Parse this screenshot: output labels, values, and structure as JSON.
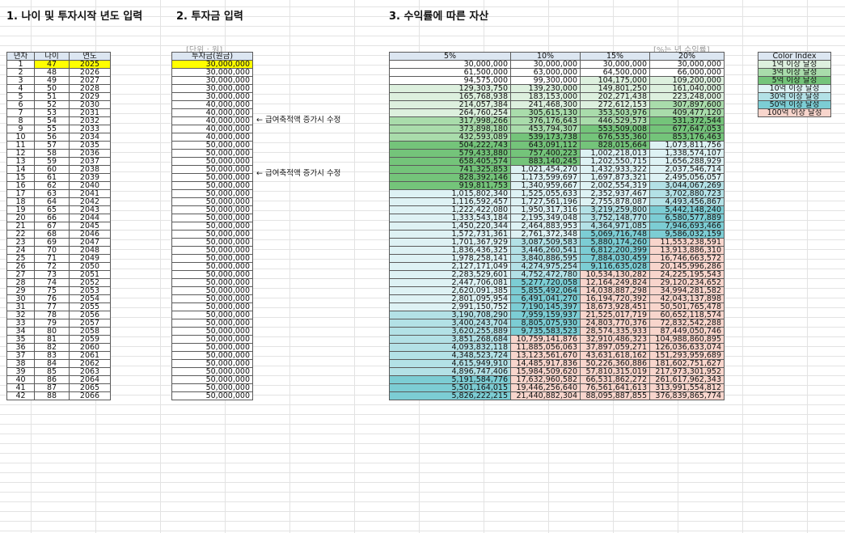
{
  "sections": {
    "s1": "1. 나이 및 투자시작 년도 입력",
    "s2": "2. 투자금 입력",
    "s3": "3. 수익률에 따른 자산"
  },
  "units": {
    "invest": "[단위 : 원]",
    "rate": "[%는 년 수익률]"
  },
  "table1": {
    "headers": [
      "년차",
      "나이",
      "연도"
    ],
    "rows": [
      [
        "1",
        "47",
        "2025"
      ],
      [
        "2",
        "48",
        "2026"
      ],
      [
        "3",
        "49",
        "2027"
      ],
      [
        "4",
        "50",
        "2028"
      ],
      [
        "5",
        "51",
        "2029"
      ],
      [
        "6",
        "52",
        "2030"
      ],
      [
        "7",
        "53",
        "2031"
      ],
      [
        "8",
        "54",
        "2032"
      ],
      [
        "9",
        "55",
        "2033"
      ],
      [
        "10",
        "56",
        "2034"
      ],
      [
        "11",
        "57",
        "2035"
      ],
      [
        "12",
        "58",
        "2036"
      ],
      [
        "13",
        "59",
        "2037"
      ],
      [
        "14",
        "60",
        "2038"
      ],
      [
        "15",
        "61",
        "2039"
      ],
      [
        "16",
        "62",
        "2040"
      ],
      [
        "17",
        "63",
        "2041"
      ],
      [
        "18",
        "64",
        "2042"
      ],
      [
        "19",
        "65",
        "2043"
      ],
      [
        "20",
        "66",
        "2044"
      ],
      [
        "21",
        "67",
        "2045"
      ],
      [
        "22",
        "68",
        "2046"
      ],
      [
        "23",
        "69",
        "2047"
      ],
      [
        "24",
        "70",
        "2048"
      ],
      [
        "25",
        "71",
        "2049"
      ],
      [
        "26",
        "72",
        "2050"
      ],
      [
        "27",
        "73",
        "2051"
      ],
      [
        "28",
        "74",
        "2052"
      ],
      [
        "29",
        "75",
        "2053"
      ],
      [
        "30",
        "76",
        "2054"
      ],
      [
        "31",
        "77",
        "2055"
      ],
      [
        "32",
        "78",
        "2056"
      ],
      [
        "33",
        "79",
        "2057"
      ],
      [
        "34",
        "80",
        "2058"
      ],
      [
        "35",
        "81",
        "2059"
      ],
      [
        "36",
        "82",
        "2060"
      ],
      [
        "37",
        "83",
        "2061"
      ],
      [
        "38",
        "84",
        "2062"
      ],
      [
        "39",
        "85",
        "2063"
      ],
      [
        "40",
        "86",
        "2064"
      ],
      [
        "41",
        "87",
        "2065"
      ],
      [
        "42",
        "88",
        "2066"
      ]
    ]
  },
  "table2": {
    "header": "투자금(원금)",
    "values": [
      "30,000,000",
      "30,000,000",
      "30,000,000",
      "30,000,000",
      "30,000,000",
      "40,000,000",
      "40,000,000",
      "40,000,000",
      "40,000,000",
      "40,000,000",
      "50,000,000",
      "50,000,000",
      "50,000,000",
      "50,000,000",
      "50,000,000",
      "50,000,000",
      "50,000,000",
      "50,000,000",
      "50,000,000",
      "50,000,000",
      "50,000,000",
      "50,000,000",
      "50,000,000",
      "50,000,000",
      "50,000,000",
      "50,000,000",
      "50,000,000",
      "50,000,000",
      "50,000,000",
      "50,000,000",
      "50,000,000",
      "50,000,000",
      "50,000,000",
      "50,000,000",
      "50,000,000",
      "50,000,000",
      "50,000,000",
      "50,000,000",
      "50,000,000",
      "50,000,000",
      "50,000,000",
      "50,000,000"
    ]
  },
  "notes": [
    "← 급여축적액 증가시 수정",
    "← 급여축적액 증가시 수정"
  ],
  "table3": {
    "headers": [
      "5%",
      "10%",
      "15%",
      "20%"
    ],
    "rows": [
      [
        "30,000,000",
        "30,000,000",
        "30,000,000",
        "30,000,000"
      ],
      [
        "61,500,000",
        "63,000,000",
        "64,500,000",
        "66,000,000"
      ],
      [
        "94,575,000",
        "99,300,000",
        "104,175,000",
        "109,200,000"
      ],
      [
        "129,303,750",
        "139,230,000",
        "149,801,250",
        "161,040,000"
      ],
      [
        "165,768,938",
        "183,153,000",
        "202,271,438",
        "223,248,000"
      ],
      [
        "214,057,384",
        "241,468,300",
        "272,612,153",
        "307,897,600"
      ],
      [
        "264,760,254",
        "305,615,130",
        "353,503,976",
        "409,477,120"
      ],
      [
        "317,998,266",
        "376,176,643",
        "446,529,573",
        "531,372,544"
      ],
      [
        "373,898,180",
        "453,794,307",
        "553,509,008",
        "677,647,053"
      ],
      [
        "432,593,089",
        "539,173,738",
        "676,535,360",
        "853,176,463"
      ],
      [
        "504,222,743",
        "643,091,112",
        "828,015,664",
        "1,073,811,756"
      ],
      [
        "579,433,880",
        "757,400,223",
        "1,002,218,013",
        "1,338,574,107"
      ],
      [
        "658,405,574",
        "883,140,245",
        "1,202,550,715",
        "1,656,288,929"
      ],
      [
        "741,325,853",
        "1,021,454,270",
        "1,432,933,322",
        "2,037,546,714"
      ],
      [
        "828,392,146",
        "1,173,599,697",
        "1,697,873,321",
        "2,495,056,057"
      ],
      [
        "919,811,753",
        "1,340,959,667",
        "2,002,554,319",
        "3,044,067,269"
      ],
      [
        "1,015,802,340",
        "1,525,055,633",
        "2,352,937,467",
        "3,702,880,723"
      ],
      [
        "1,116,592,457",
        "1,727,561,196",
        "2,755,878,087",
        "4,493,456,867"
      ],
      [
        "1,222,422,080",
        "1,950,317,316",
        "3,219,259,800",
        "5,442,148,240"
      ],
      [
        "1,333,543,184",
        "2,195,349,048",
        "3,752,148,770",
        "6,580,577,889"
      ],
      [
        "1,450,220,344",
        "2,464,883,953",
        "4,364,971,085",
        "7,946,693,466"
      ],
      [
        "1,572,731,361",
        "2,761,372,348",
        "5,069,716,748",
        "9,586,032,159"
      ],
      [
        "1,701,367,929",
        "3,087,509,583",
        "5,880,174,260",
        "11,553,238,591"
      ],
      [
        "1,836,436,325",
        "3,446,260,541",
        "6,812,200,399",
        "13,913,886,310"
      ],
      [
        "1,978,258,141",
        "3,840,886,595",
        "7,884,030,459",
        "16,746,663,572"
      ],
      [
        "2,127,171,049",
        "4,274,975,254",
        "9,116,635,028",
        "20,145,996,286"
      ],
      [
        "2,283,529,601",
        "4,752,472,780",
        "10,534,130,282",
        "24,225,195,543"
      ],
      [
        "2,447,706,081",
        "5,277,720,058",
        "12,164,249,824",
        "29,120,234,652"
      ],
      [
        "2,620,091,385",
        "5,855,492,064",
        "14,038,887,298",
        "34,994,281,582"
      ],
      [
        "2,801,095,954",
        "6,491,041,270",
        "16,194,720,392",
        "42,043,137,898"
      ],
      [
        "2,991,150,752",
        "7,190,145,397",
        "18,673,928,451",
        "50,501,765,478"
      ],
      [
        "3,190,708,290",
        "7,959,159,937",
        "21,525,017,719",
        "60,652,118,574"
      ],
      [
        "3,400,243,704",
        "8,805,075,930",
        "24,803,770,376",
        "72,832,542,288"
      ],
      [
        "3,620,255,889",
        "9,735,583,523",
        "28,574,335,933",
        "87,449,050,746"
      ],
      [
        "3,851,268,684",
        "10,759,141,876",
        "32,910,486,323",
        "104,988,860,895"
      ],
      [
        "4,093,832,118",
        "11,885,056,063",
        "37,897,059,271",
        "126,036,633,074"
      ],
      [
        "4,348,523,724",
        "13,123,561,670",
        "43,631,618,162",
        "151,293,959,689"
      ],
      [
        "4,615,949,910",
        "14,485,917,836",
        "50,226,360,886",
        "181,602,751,627"
      ],
      [
        "4,896,747,406",
        "15,984,509,620",
        "57,810,315,019",
        "217,973,301,952"
      ],
      [
        "5,191,584,776",
        "17,632,960,582",
        "66,531,862,272",
        "261,617,962,343"
      ],
      [
        "5,501,164,015",
        "19,446,256,640",
        "76,561,641,613",
        "313,991,554,812"
      ],
      [
        "5,826,222,215",
        "21,440,882,304",
        "88,095,887,855",
        "376,839,865,774"
      ]
    ]
  },
  "color_index": {
    "header": "Color Index",
    "items": [
      {
        "label": "1억 이상 달성",
        "color": "#ddf0de"
      },
      {
        "label": "3억 이상 달성",
        "color": "#a9dcab"
      },
      {
        "label": "5억 이상 달성",
        "color": "#74c47a"
      },
      {
        "label": "10억 이상 달성",
        "color": "#def2f4"
      },
      {
        "label": "30억 이상 달성",
        "color": "#b3e1e6"
      },
      {
        "label": "50억 이상 달성",
        "color": "#7ccdd4"
      },
      {
        "label": "100억 이상 달성",
        "color": "#f8d5cc"
      }
    ]
  },
  "colors": {
    "input_yellow": "#ffff00",
    "header_blue": "#dce6f1"
  }
}
